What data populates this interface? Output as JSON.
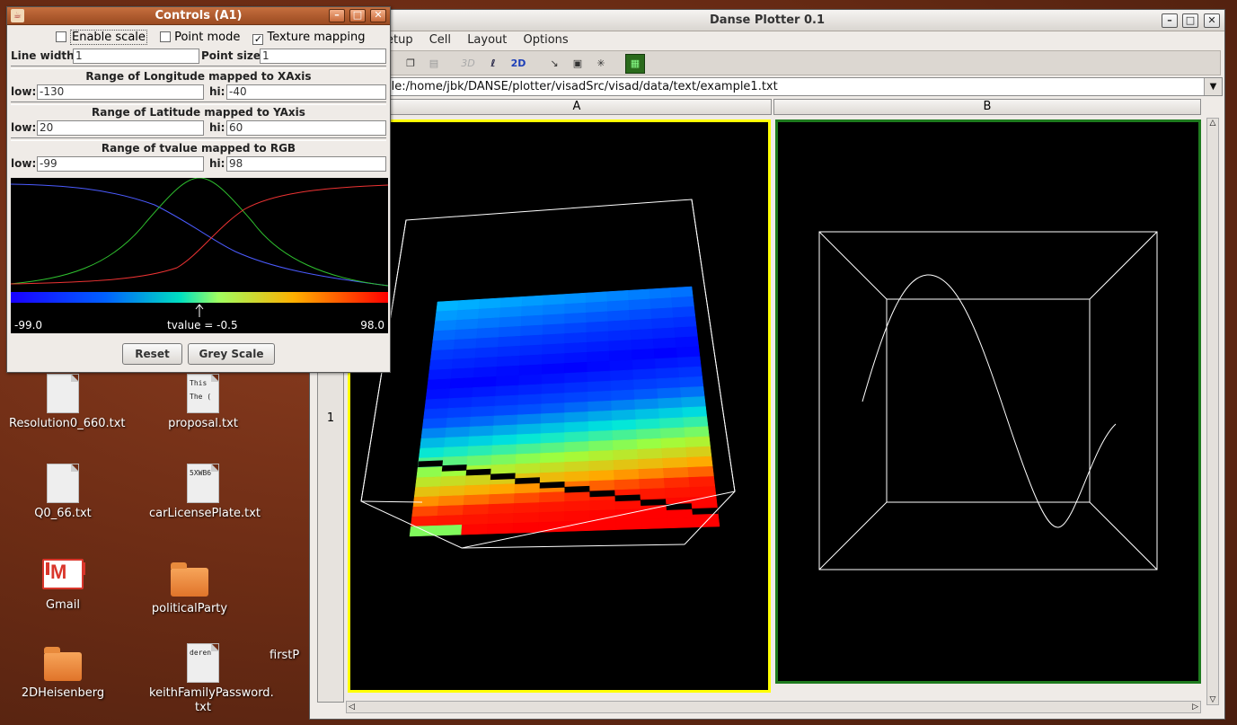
{
  "desktop": {
    "icons": [
      {
        "label": "Resolution0_660.txt",
        "kind": "file",
        "preview": ""
      },
      {
        "label": "proposal.txt",
        "kind": "file",
        "preview": "This\nThe ("
      },
      {
        "label": "Q0_66.txt",
        "kind": "file",
        "preview": ""
      },
      {
        "label": "carLicensePlate.txt",
        "kind": "file",
        "preview": "5XWB6"
      },
      {
        "label": "Gmail",
        "kind": "gmail",
        "preview": "M"
      },
      {
        "label": "politicalParty",
        "kind": "folder",
        "preview": ""
      },
      {
        "label": "2DHeisenberg",
        "kind": "folder",
        "preview": ""
      },
      {
        "label": "keithFamilyPassword.\ntxt",
        "kind": "file",
        "preview": "deren"
      },
      {
        "label": "firstP",
        "kind": "partial",
        "preview": ""
      }
    ]
  },
  "plotter": {
    "title": "Danse Plotter 0.1",
    "menu": [
      "etup",
      "Cell",
      "Layout",
      "Options"
    ],
    "toolbar_3d": "3D",
    "toolbar_2d": "2D",
    "url": "ile:/home/jbk/DANSE/plotter/visadSrc/visad/data/text/example1.txt",
    "columns": [
      "A",
      "B"
    ],
    "rows": [
      "1"
    ],
    "colors": {
      "cell_a_border": "#ffff00",
      "cell_b_border": "#1e7a1e"
    }
  },
  "controls": {
    "title": "Controls (A1)",
    "enable_scale": "Enable scale",
    "point_mode": "Point mode",
    "texture_mapping": "Texture mapping",
    "enable_scale_checked": false,
    "point_mode_checked": false,
    "texture_mapping_checked": true,
    "line_width_label": "Line width:",
    "line_width": "1",
    "point_size_label": "Point size:",
    "point_size": "1",
    "ranges": [
      {
        "title": "Range of Longitude mapped to XAxis",
        "low": "-130",
        "hi": "-40"
      },
      {
        "title": "Range of Latitude mapped to YAxis",
        "low": "20",
        "hi": "60"
      },
      {
        "title": "Range of tvalue mapped to RGB",
        "low": "-99",
        "hi": "98"
      }
    ],
    "low_label": "low:",
    "hi_label": "hi:",
    "colormap_min": "-99.0",
    "colormap_max": "98.0",
    "colormap_readout": "tvalue = -0.5",
    "reset": "Reset",
    "grey_scale": "Grey Scale"
  }
}
